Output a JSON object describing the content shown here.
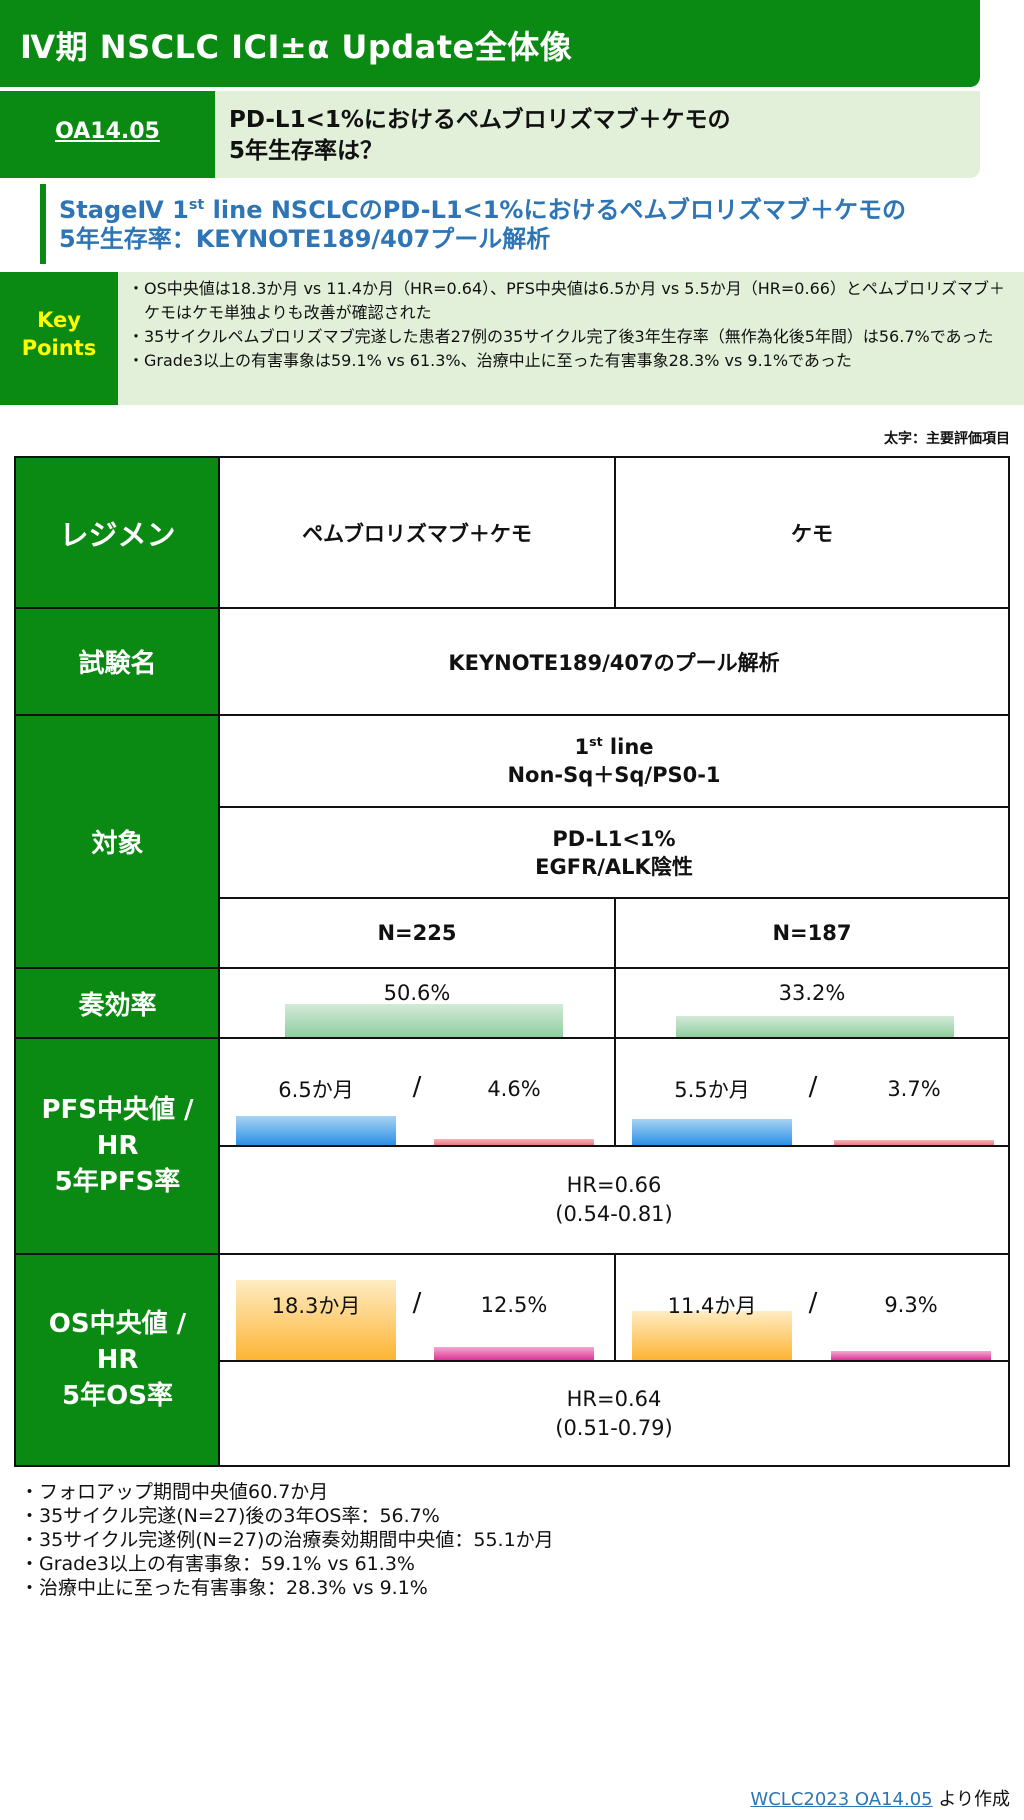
{
  "header": {
    "title": "Ⅳ期 NSCLC ICI±α Update全体像"
  },
  "abstract": {
    "id": "OA14.05",
    "question_line1": "PD-L1<1%におけるペムブロリズマブ＋ケモの",
    "question_line2": "5年生存率は？"
  },
  "subtitle": {
    "line1_pre": "StageⅣ 1",
    "line1_sup": "st",
    "line1_post": " line NSCLCのPD-L1<1%におけるペムブロリズマブ＋ケモの",
    "line2": "5年生存率：KEYNOTE189/407プール解析"
  },
  "key_points": {
    "label": "Key\nPoints",
    "items": [
      "・OS中央値は18.3か月 vs 11.4か月（HR=0.64）、PFS中央値は6.5か月 vs 5.5か月（HR=0.66）とペムブロリズマブ＋ケモはケモ単独よりも改善が確認された",
      "・35サイクルペムブロリズマブ完遂した患者27例の35サイクル完了後3年生存率（無作為化後5年間）は56.7%であった",
      "・Grade3以上の有害事象は59.1% vs 61.3%、治療中止に至った有害事象28.3% vs 9.1%であった"
    ]
  },
  "bold_note": "太字：主要評価項目",
  "table": {
    "regimen_label": "レジメン",
    "arm_a": "ペムブロリズマブ＋ケモ",
    "arm_b": "ケモ",
    "trial_label": "試験名",
    "trial_name": "KEYNOTE189/407のプール解析",
    "target_label": "対象",
    "target_line_pre": "1",
    "target_line_sup": "st",
    "target_line_post": " line",
    "target_line2": "Non-Sq＋Sq/PS0-1",
    "target_pdl1": "PD-L1<1%\nEGFR/ALK陰性",
    "n_a": "N=225",
    "n_b": "N=187",
    "orr_label": "奏効率",
    "orr_a": "50.6%",
    "orr_b": "33.2%",
    "pfs_label": "PFS中央値 /\nHR\n5年PFS率",
    "pfs_median_a": "6.5か月",
    "pfs_rate_a": "4.6%",
    "pfs_median_b": "5.5か月",
    "pfs_rate_b": "3.7%",
    "pfs_hr": "HR=0.66\n(0.54-0.81)",
    "os_label": "OS中央値 /\nHR\n5年OS率",
    "os_median_a": "18.3か月",
    "os_rate_a": "12.5%",
    "os_median_b": "11.4か月",
    "os_rate_b": "9.3%",
    "os_hr": "HR=0.64\n(0.51-0.79)",
    "slash": "/"
  },
  "footnotes": [
    "・フォロアップ期間中央値60.7か月",
    "・35サイクル完遂(N=27)後の3年OS率：56.7%",
    "・35サイクル完遂例(N=27)の治療奏効期間中央値：55.1か月",
    "・Grade3以上の有害事象：59.1% vs 61.3%",
    "・治療中止に至った有害事象：28.3% vs 9.1%"
  ],
  "source": {
    "link": "WCLC2023 OA14.05",
    "suffix": " より作成"
  }
}
